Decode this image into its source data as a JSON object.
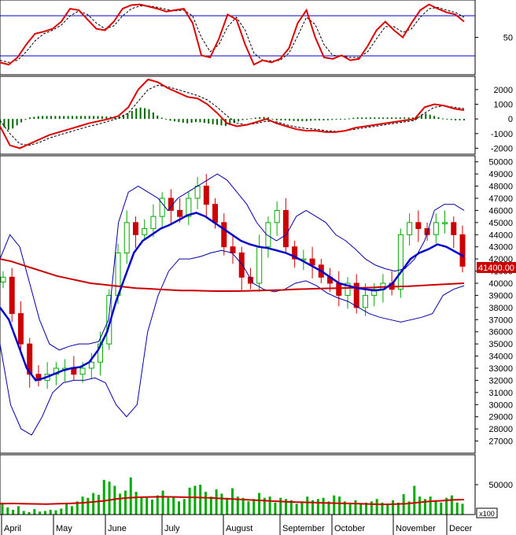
{
  "chart_data": [
    {
      "type": "line",
      "panel": "stochastic-oscillator",
      "ylim": [
        0,
        100
      ],
      "y_ticks": [
        "50"
      ],
      "reference_lines": [
        80,
        20
      ],
      "colors": {
        "k_line": "#dd0000",
        "d_line": "#000000",
        "reference": "#0000cc"
      },
      "series": [
        {
          "values": [
            15,
            12,
            22,
            40,
            55,
            58,
            62,
            72,
            90,
            88,
            75,
            62,
            60,
            72,
            90,
            95,
            96,
            93,
            90,
            86,
            88,
            90,
            70,
            25,
            22,
            48,
            82,
            75,
            40,
            12,
            18,
            15,
            20,
            35,
            70,
            88,
            50,
            22,
            20,
            25,
            18,
            20,
            38,
            60,
            72,
            60,
            50,
            70,
            88,
            96,
            90,
            85,
            82,
            72
          ]
        },
        {
          "values": [
            18,
            15,
            18,
            30,
            45,
            55,
            60,
            67,
            80,
            87,
            82,
            70,
            62,
            66,
            80,
            90,
            94,
            94,
            92,
            89,
            87,
            88,
            80,
            50,
            30,
            40,
            65,
            78,
            60,
            28,
            18,
            17,
            18,
            28,
            52,
            78,
            68,
            40,
            25,
            24,
            22,
            22,
            30,
            48,
            65,
            65,
            57,
            62,
            78,
            90,
            92,
            88,
            85,
            78
          ]
        }
      ]
    },
    {
      "type": "bar",
      "panel": "macd",
      "ylim": [
        -2300,
        2800
      ],
      "y_ticks": [
        "2000",
        "1000",
        "0",
        "-1000",
        "-2000"
      ],
      "colors": {
        "macd_line": "#dd0000",
        "signal_line": "#000000",
        "histogram": "#006600"
      },
      "series": [
        {
          "values": [
            -500,
            -1800,
            -2000,
            -1700,
            -1400,
            -1100,
            -900,
            -700,
            -500,
            -300,
            -150,
            0,
            200,
            800,
            2000,
            2700,
            2500,
            2100,
            1800,
            1500,
            1400,
            1000,
            400,
            -300,
            -500,
            -400,
            -200,
            0,
            -300,
            -500,
            -700,
            -800,
            -800,
            -900,
            -900,
            -800,
            -600,
            -500,
            -400,
            -300,
            -200,
            -100,
            0,
            800,
            1000,
            900,
            700,
            600
          ]
        },
        {
          "values": [
            -100,
            -1000,
            -1700,
            -1800,
            -1600,
            -1300,
            -1100,
            -900,
            -700,
            -500,
            -350,
            -150,
            50,
            400,
            1200,
            2000,
            2300,
            2200,
            2000,
            1800,
            1600,
            1300,
            800,
            200,
            -300,
            -400,
            -300,
            -150,
            -200,
            -400,
            -550,
            -650,
            -700,
            -800,
            -850,
            -800,
            -700,
            -600,
            -500,
            -400,
            -300,
            -200,
            -100,
            400,
            800,
            900,
            800,
            700
          ]
        }
      ]
    },
    {
      "type": "line",
      "panel": "price",
      "ylim": [
        26000,
        50500
      ],
      "y_ticks": [
        "50000",
        "49000",
        "48000",
        "47000",
        "46000",
        "45000",
        "44000",
        "43000",
        "42000",
        "41000",
        "40000",
        "39000",
        "38000",
        "37000",
        "36000",
        "35000",
        "34000",
        "33000",
        "32000",
        "31000",
        "30000",
        "29000",
        "28000",
        "27000"
      ],
      "last_price_label": "41400.00",
      "colors": {
        "up_candle": "#00aa00",
        "down_candle": "#cc0000",
        "moving_average_short": "#0000cc",
        "moving_average_long": "#cc0000",
        "bands": "#0000aa",
        "last_price": "#cc0000"
      },
      "series": [
        {
          "values": [
            40500,
            37500,
            35000,
            32500,
            32000,
            32500,
            33000,
            33000,
            32500,
            33000,
            33500,
            35000,
            39000,
            42500,
            45000,
            44000,
            44500,
            45500,
            47000,
            46000,
            45500,
            47000,
            48000,
            46500,
            45000,
            43000,
            42500,
            40500,
            40000,
            43000,
            45000,
            46000,
            43000,
            42000,
            42000,
            41500,
            40500,
            40000,
            39000,
            40000,
            38000,
            39000,
            39500,
            40000,
            39500,
            44000,
            45000,
            44500,
            44000,
            45000,
            45000,
            44000,
            41400
          ]
        },
        {
          "values": [
            38000,
            37000,
            35000,
            33000,
            32000,
            32200,
            32500,
            32800,
            33000,
            33100,
            33500,
            34500,
            36000,
            38500,
            40500,
            42500,
            43500,
            44000,
            44500,
            44800,
            45200,
            45600,
            45800,
            45500,
            45000,
            44500,
            44000,
            43500,
            43200,
            43000,
            42900,
            42700,
            42500,
            42200,
            41800,
            41400,
            41000,
            40500,
            40000,
            39800,
            39600,
            39500,
            39400,
            39500,
            40000,
            41000,
            42000,
            42500,
            42800,
            43200,
            43000,
            42600,
            42200
          ]
        },
        {
          "values": [
            42000,
            41800,
            41500,
            41200,
            40900,
            40600,
            40400,
            40200,
            40000,
            39900,
            39800,
            39700,
            39600,
            39550,
            39500,
            39450,
            39400,
            39400,
            39380,
            39350,
            39350,
            39350,
            39380,
            39400,
            39420,
            39450,
            39500,
            39520,
            39550,
            39580,
            39600,
            39620,
            39630,
            39650,
            39700,
            39720,
            39750,
            39800,
            39850,
            39900,
            39950,
            40000
          ]
        },
        {
          "values": [
            42000,
            44000,
            43000,
            40000,
            37000,
            35000,
            34500,
            34800,
            35000,
            35000,
            35200,
            37000,
            45000,
            47500,
            48000,
            47500,
            47000,
            46000,
            47000,
            47500,
            48000,
            48500,
            49000,
            48500,
            47500,
            46500,
            45000,
            44000,
            43500,
            44000,
            45500,
            46000,
            45500,
            45000,
            44000,
            43500,
            42800,
            42000,
            41500,
            41200,
            41000,
            41200,
            42000,
            43500,
            46000,
            46500,
            46500,
            46000
          ]
        },
        {
          "values": [
            35000,
            30000,
            28000,
            27500,
            29000,
            31000,
            31800,
            32000,
            32000,
            32200,
            31800,
            30000,
            29000,
            30000,
            36000,
            39000,
            41000,
            42000,
            42000,
            42200,
            42500,
            42700,
            42500,
            41500,
            40000,
            39500,
            39300,
            39500,
            40000,
            40200,
            39800,
            39200,
            38800,
            38500,
            38000,
            37500,
            37200,
            37000,
            36800,
            37000,
            37200,
            37500,
            39000,
            39500,
            39800
          ]
        }
      ]
    },
    {
      "type": "bar",
      "panel": "volume",
      "ylim": [
        0,
        100000
      ],
      "y_ticks": [
        "50000"
      ],
      "unit_label": "x100",
      "colors": {
        "volume_bars": "#00aa00",
        "volume_average": "#cc0000"
      },
      "x_tick_labels": [
        "April",
        "May",
        "June",
        "July",
        "August",
        "September",
        "October",
        "November",
        "Decer"
      ],
      "series": [
        {
          "values": [
            20000,
            12000,
            8000,
            14000,
            6000,
            4000,
            9000,
            5000,
            6000,
            8000,
            7000,
            10000,
            20000,
            14000,
            22000,
            30000,
            28000,
            36000,
            33000,
            58000,
            55000,
            48000,
            35000,
            40000,
            62000,
            38000,
            30000,
            28000,
            25000,
            32000,
            40000,
            28000,
            30000,
            22000,
            26000,
            45000,
            48000,
            50000,
            38000,
            30000,
            42000,
            35000,
            28000,
            44000,
            30000,
            28000,
            22000,
            26000,
            36000,
            28000,
            30000,
            20000,
            28000,
            26000,
            24000,
            18000,
            22000,
            30000,
            24000,
            26000,
            28000,
            22000,
            32000,
            30000,
            22000,
            20000,
            24000,
            18000,
            20000,
            22000,
            26000,
            20000,
            18000,
            24000,
            20000,
            34000,
            22000,
            48000,
            30000,
            26000,
            30000,
            24000,
            20000,
            28000,
            32000,
            20000,
            18000
          ]
        },
        {
          "values": [
            18000,
            18500,
            18200,
            17800,
            17500,
            18000,
            18500,
            19500,
            21000,
            23000,
            26000,
            28000,
            29000,
            29500,
            29800,
            29500,
            29000,
            28500,
            28000,
            27000,
            26000,
            25000,
            24000,
            23000,
            22000,
            21000,
            20500,
            20000,
            19500,
            19000,
            18500,
            18000,
            17500,
            17000,
            17500,
            18000,
            20000,
            22000,
            23000,
            24500,
            25000
          ]
        }
      ]
    }
  ]
}
